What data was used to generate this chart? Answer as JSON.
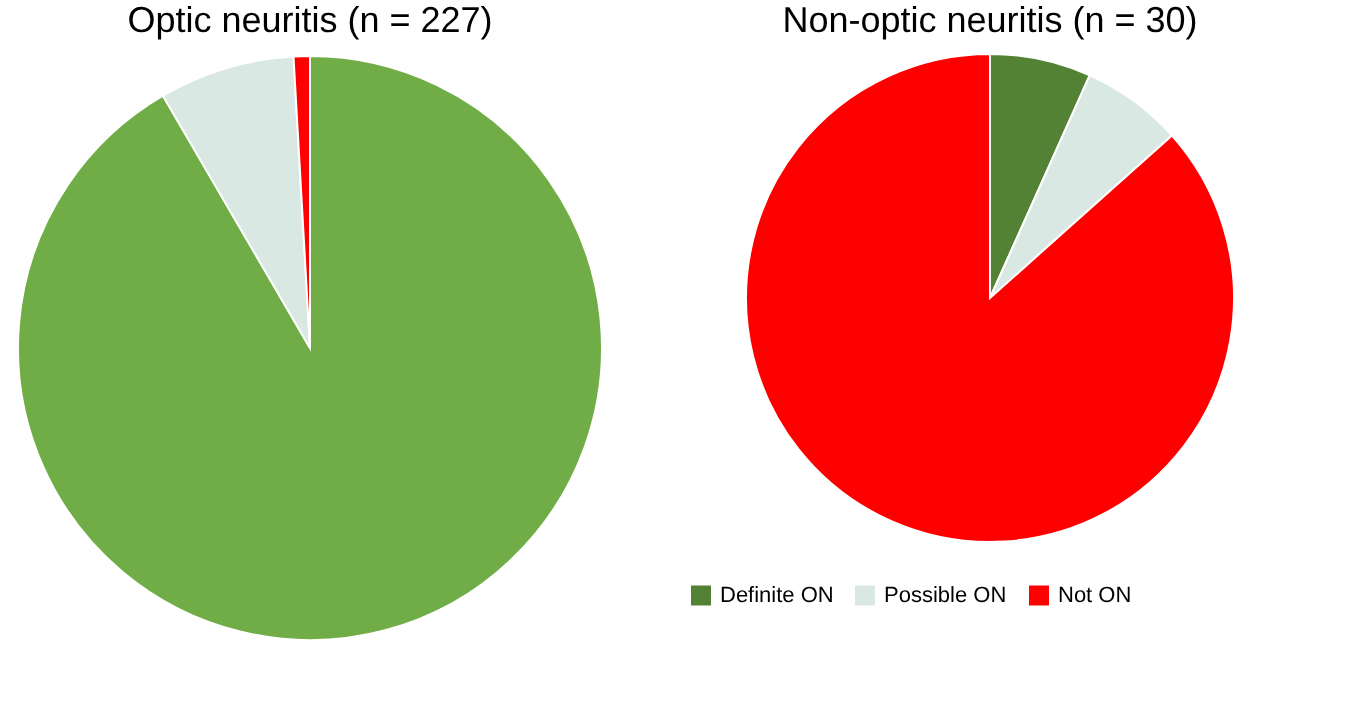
{
  "chart_data": [
    {
      "type": "pie",
      "title": "Optic neuritis (n = 227)",
      "categories": [
        null,
        null,
        null
      ],
      "values": [
        91.6,
        7.5,
        0.9
      ],
      "colors": [
        "#70ad47",
        "#dae8e3",
        "#ff0000"
      ],
      "legend": false
    },
    {
      "type": "pie",
      "title": "Non-optic neuritis (n = 30)",
      "categories": [
        "Definite ON",
        "Possible ON",
        "Not ON"
      ],
      "values": [
        6.7,
        6.7,
        86.6
      ],
      "colors": [
        "#548235",
        "#dae8e3",
        "#ff0000"
      ],
      "legend": "bottom"
    }
  ]
}
